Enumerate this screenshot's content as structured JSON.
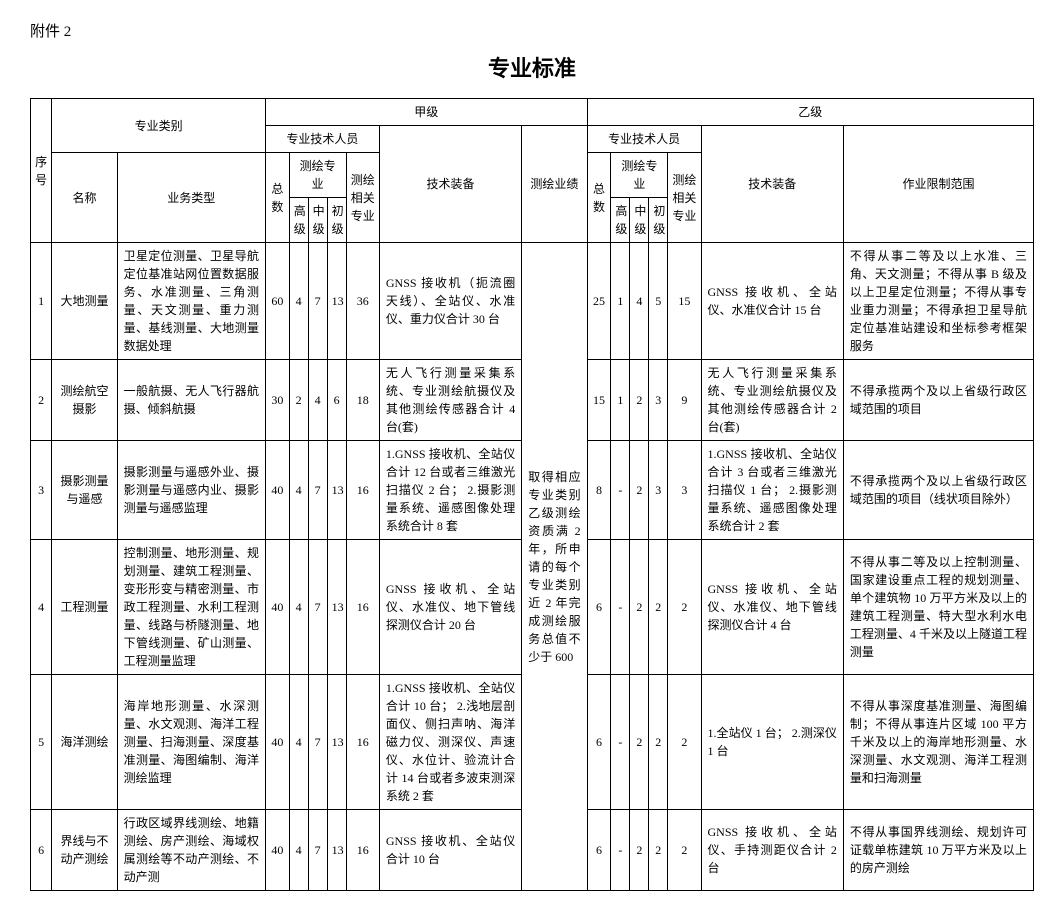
{
  "attachment": "附件 2",
  "title": "专业标准",
  "th": {
    "seq": "序号",
    "spec": "专业类别",
    "jia": "甲级",
    "yi": "乙级",
    "tech_pers": "专业技术人员",
    "name": "名称",
    "biztype": "业务类型",
    "total": "总数",
    "survey_major": "测绘专业",
    "related_major": "测绘相关专业",
    "equip": "技术装备",
    "perf": "测绘业绩",
    "scope": "作业限制范围",
    "gao": "高级",
    "zhong": "中级",
    "chu": "初级"
  },
  "rows": [
    {
      "seq": "1",
      "name": "大地测量",
      "biz": "卫星定位测量、卫星导航定位基准站网位置数据服务、水准测量、三角测量、天文测量、重力测量、基线测量、大地测量数据处理",
      "jia": {
        "total": "60",
        "gao": "4",
        "zhong": "7",
        "chu": "13",
        "rel": "36",
        "equip": "GNSS 接收机（扼流圈天线）、全站仪、水准仪、重力仪合计 30 台"
      },
      "yi": {
        "total": "25",
        "gao": "1",
        "zhong": "4",
        "chu": "5",
        "rel": "15",
        "equip": "GNSS 接收机、全站仪、水准仪合计 15 台",
        "scope": "不得从事二等及以上水准、三角、天文测量；不得从事 B 级及以上卫星定位测量；不得从事专业重力测量；不得承担卫星导航定位基准站建设和坐标参考框架服务"
      }
    },
    {
      "seq": "2",
      "name": "测绘航空摄影",
      "biz": "一般航摄、无人飞行器航摄、倾斜航摄",
      "jia": {
        "total": "30",
        "gao": "2",
        "zhong": "4",
        "chu": "6",
        "rel": "18",
        "equip": "无人飞行测量采集系统、专业测绘航摄仪及其他测绘传感器合计 4 台(套)"
      },
      "yi": {
        "total": "15",
        "gao": "1",
        "zhong": "2",
        "chu": "3",
        "rel": "9",
        "equip": "无人飞行测量采集系统、专业测绘航摄仪及其他测绘传感器合计 2 台(套)",
        "scope": "不得承揽两个及以上省级行政区域范围的项目"
      }
    },
    {
      "seq": "3",
      "name": "摄影测量与遥感",
      "biz": "摄影测量与遥感外业、摄影测量与遥感内业、摄影测量与遥感监理",
      "jia": {
        "total": "40",
        "gao": "4",
        "zhong": "7",
        "chu": "13",
        "rel": "16",
        "equip": "1.GNSS 接收机、全站仪合计 12 台或者三维激光扫描仪 2 台；\n2.摄影测量系统、遥感图像处理系统合计 8 套"
      },
      "yi": {
        "total": "8",
        "gao": "-",
        "zhong": "2",
        "chu": "3",
        "rel": "3",
        "equip": "1.GNSS 接收机、全站仪合计 3 台或者三维激光扫描仪 1 台；\n2.摄影测量系统、遥感图像处理系统合计 2 套",
        "scope": "不得承揽两个及以上省级行政区域范围的项目（线状项目除外）"
      }
    },
    {
      "seq": "4",
      "name": "工程测量",
      "biz": "控制测量、地形测量、规划测量、建筑工程测量、变形形变与精密测量、市政工程测量、水利工程测量、线路与桥隧测量、地下管线测量、矿山测量、工程测量监理",
      "jia": {
        "total": "40",
        "gao": "4",
        "zhong": "7",
        "chu": "13",
        "rel": "16",
        "equip": "GNSS 接收机、全站仪、水准仪、地下管线探测仪合计 20 台"
      },
      "yi": {
        "total": "6",
        "gao": "-",
        "zhong": "2",
        "chu": "2",
        "rel": "2",
        "equip": "GNSS 接收机、全站仪、水准仪、地下管线探测仪合计 4 台",
        "scope": "不得从事二等及以上控制测量、国家建设重点工程的规划测量、单个建筑物 10 万平方米及以上的建筑工程测量、特大型水利水电工程测量、4 千米及以上隧道工程测量"
      }
    },
    {
      "seq": "5",
      "name": "海洋测绘",
      "biz": "海岸地形测量、水深测量、水文观测、海洋工程测量、扫海测量、深度基准测量、海图编制、海洋测绘监理",
      "jia": {
        "total": "40",
        "gao": "4",
        "zhong": "7",
        "chu": "13",
        "rel": "16",
        "equip": "1.GNSS 接收机、全站仪合计 10 台；\n2.浅地层剖面仪、侧扫声呐、海洋磁力仪、测深仪、声速仪、水位计、验流计合计 14 台或者多波束测深系统 2 套"
      },
      "yi": {
        "total": "6",
        "gao": "-",
        "zhong": "2",
        "chu": "2",
        "rel": "2",
        "equip": "1.全站仪 1 台；\n2.测深仪 1 台",
        "scope": "不得从事深度基准测量、海图编制；不得从事连片区域 100 平方千米及以上的海岸地形测量、水深测量、水文观测、海洋工程测量和扫海测量"
      }
    },
    {
      "seq": "6",
      "name": "界线与不动产测绘",
      "biz": "行政区域界线测绘、地籍测绘、房产测绘、海域权属测绘等不动产测绘、不动产测",
      "jia": {
        "total": "40",
        "gao": "4",
        "zhong": "7",
        "chu": "13",
        "rel": "16",
        "equip": "GNSS 接收机、全站仪合计 10 台"
      },
      "yi": {
        "total": "6",
        "gao": "-",
        "zhong": "2",
        "chu": "2",
        "rel": "2",
        "equip": "GNSS 接收机、全站仪、手持测距仪合计 2 台",
        "scope": "不得从事国界线测绘、规划许可证载单栋建筑 10 万平方米及以上的房产测绘"
      }
    }
  ],
  "perf_text": "取得相应专业类别乙级测绘资质满 2 年，所申请的每个专业类别近 2 年完成测绘服务总值不少于 600"
}
